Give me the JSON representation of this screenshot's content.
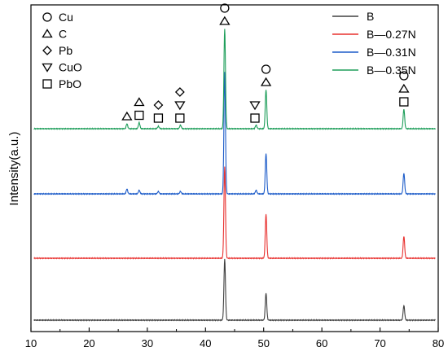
{
  "chart_data": {
    "type": "line",
    "title": "",
    "xlabel": "",
    "ylabel": "Intensity(a.u.)",
    "xlim": [
      10,
      80
    ],
    "x_ticks": [
      "10",
      "20",
      "30",
      "40",
      "50",
      "60",
      "70",
      "80"
    ],
    "y_ticks_visible": false,
    "grid": false,
    "legend_placement": "top-right",
    "phase_legend_placement": "top-left",
    "phase_symbols": [
      {
        "shape": "circle",
        "label": "Cu"
      },
      {
        "shape": "triangle-up",
        "label": "C"
      },
      {
        "shape": "diamond",
        "label": "Pb"
      },
      {
        "shape": "triangle-down",
        "label": "CuO"
      },
      {
        "shape": "square",
        "label": "PbO"
      }
    ],
    "series": [
      {
        "name": "B",
        "color": "#404040",
        "offset": 0,
        "peaks": [
          [
            43.3,
            50
          ],
          [
            50.4,
            22
          ],
          [
            74.1,
            12
          ]
        ]
      },
      {
        "name": "B—0.27N",
        "color": "#e8312f",
        "offset": 1,
        "peaks": [
          [
            43.3,
            75
          ],
          [
            50.4,
            36
          ],
          [
            74.1,
            18
          ]
        ]
      },
      {
        "name": "B—0.31N",
        "color": "#1d5cc9",
        "offset": 2,
        "peaks": [
          [
            26.5,
            4
          ],
          [
            28.6,
            3
          ],
          [
            31.9,
            2
          ],
          [
            35.7,
            2
          ],
          [
            43.3,
            100
          ],
          [
            48.7,
            3
          ],
          [
            50.4,
            33
          ],
          [
            74.1,
            17
          ]
        ]
      },
      {
        "name": "B—0.35N",
        "color": "#1e9e5a",
        "offset": 3,
        "peaks": [
          [
            26.5,
            4
          ],
          [
            28.6,
            5
          ],
          [
            31.9,
            2
          ],
          [
            35.7,
            3
          ],
          [
            43.3,
            82
          ],
          [
            48.7,
            3
          ],
          [
            50.4,
            32
          ],
          [
            74.1,
            16
          ]
        ]
      }
    ],
    "peak_markers": [
      {
        "x": 26.5,
        "symbols": [
          "triangle-up"
        ]
      },
      {
        "x": 28.6,
        "symbols": [
          "square",
          "triangle-up"
        ]
      },
      {
        "x": 31.9,
        "symbols": [
          "square",
          "diamond"
        ]
      },
      {
        "x": 35.6,
        "symbols": [
          "square",
          "triangle-down",
          "diamond"
        ]
      },
      {
        "x": 43.3,
        "symbols": [
          "triangle-up",
          "circle"
        ]
      },
      {
        "x": 48.5,
        "symbols": [
          "square",
          "triangle-down"
        ]
      },
      {
        "x": 50.4,
        "symbols": [
          "triangle-up",
          "circle"
        ]
      },
      {
        "x": 74.1,
        "symbols": [
          "square",
          "triangle-up",
          "circle"
        ]
      }
    ]
  }
}
